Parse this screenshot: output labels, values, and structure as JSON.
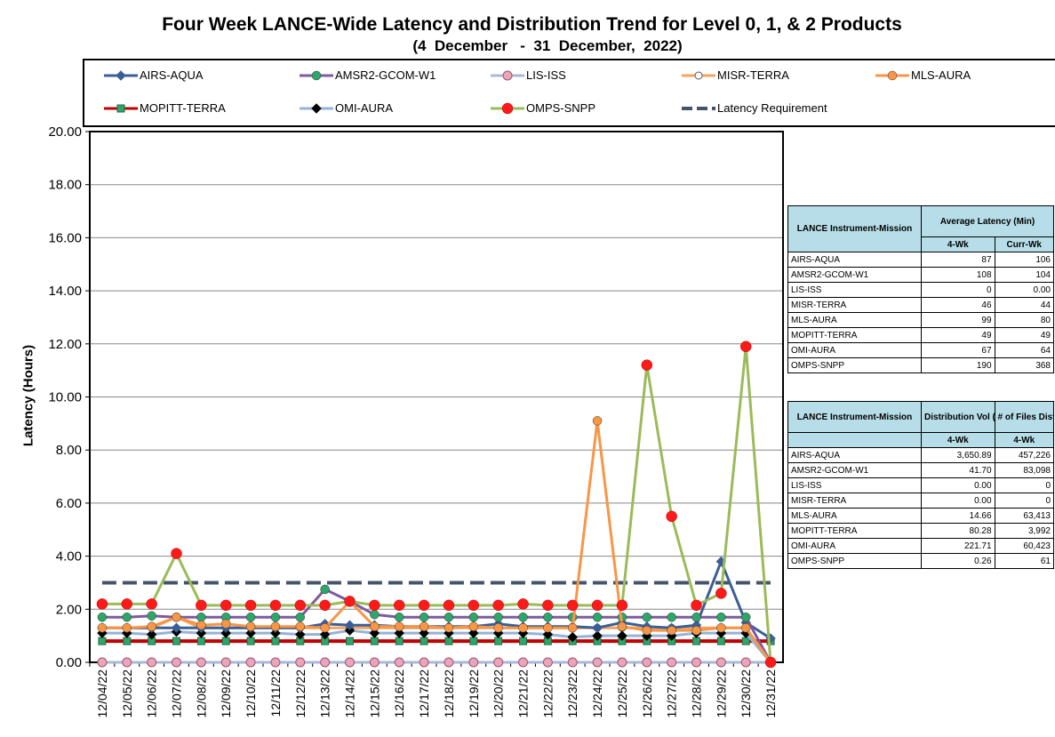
{
  "chart_data": {
    "type": "line",
    "title": "Four Week LANCE-Wide Latency and Distribution Trend for Level 0, 1, & 2 Products",
    "subtitle": "(4  December   -  31  December,  2022)",
    "xlabel": "",
    "ylabel": "Latency (Hours)",
    "ylim": [
      0,
      20
    ],
    "yticks": [
      "0.00",
      "2.00",
      "4.00",
      "6.00",
      "8.00",
      "10.00",
      "12.00",
      "14.00",
      "16.00",
      "18.00",
      "20.00"
    ],
    "grid": true,
    "legend_position": "top",
    "categories": [
      "12/04/22",
      "12/05/22",
      "12/06/22",
      "12/07/22",
      "12/08/22",
      "12/09/22",
      "12/10/22",
      "12/11/22",
      "12/12/22",
      "12/13/22",
      "12/14/22",
      "12/15/22",
      "12/16/22",
      "12/17/22",
      "12/18/22",
      "12/19/22",
      "12/20/22",
      "12/21/22",
      "12/22/22",
      "12/23/22",
      "12/24/22",
      "12/25/22",
      "12/26/22",
      "12/27/22",
      "12/28/22",
      "12/29/22",
      "12/30/22",
      "12/31/22"
    ],
    "series": [
      {
        "name": "AIRS-AQUA",
        "color": "#3a5f96",
        "marker": "diamond",
        "values": [
          1.3,
          1.3,
          1.3,
          1.3,
          1.3,
          1.3,
          1.3,
          1.3,
          1.3,
          1.45,
          1.4,
          1.4,
          1.35,
          1.35,
          1.35,
          1.35,
          1.45,
          1.35,
          1.35,
          1.35,
          1.3,
          1.5,
          1.35,
          1.3,
          1.4,
          3.8,
          1.5,
          0.9
        ]
      },
      {
        "name": "AMSR2-GCOM-W1",
        "color": "#7f5a9e",
        "marker": "circle",
        "values": [
          1.7,
          1.7,
          1.75,
          1.7,
          1.7,
          1.7,
          1.7,
          1.7,
          1.7,
          2.75,
          2.3,
          1.8,
          1.7,
          1.7,
          1.7,
          1.7,
          1.7,
          1.7,
          1.7,
          1.7,
          1.7,
          1.7,
          1.7,
          1.7,
          1.7,
          1.7,
          1.7,
          0.0
        ]
      },
      {
        "name": "LIS-ISS",
        "color": "#aab8d8",
        "marker": "circle-pink",
        "values": [
          0,
          0,
          0,
          0,
          0,
          0,
          0,
          0,
          0,
          0,
          0,
          0,
          0,
          0,
          0,
          0,
          0,
          0,
          0,
          0,
          0,
          0,
          0,
          0,
          0,
          0,
          0,
          0
        ]
      },
      {
        "name": "MISR-TERRA",
        "color": "#f4a460",
        "marker": "circle-open",
        "values": [
          1.3,
          1.3,
          1.3,
          1.7,
          1.3,
          1.3,
          1.3,
          1.3,
          1.3,
          1.3,
          1.3,
          1.3,
          1.3,
          1.3,
          1.3,
          1.3,
          1.3,
          1.3,
          1.3,
          1.3,
          1.3,
          1.3,
          1.3,
          1.3,
          1.3,
          1.3,
          1.3,
          0.0
        ]
      },
      {
        "name": "MLS-AURA",
        "color": "#f79646",
        "marker": "circle",
        "values": [
          1.3,
          1.3,
          1.35,
          1.7,
          1.4,
          1.45,
          1.35,
          1.35,
          1.35,
          1.3,
          2.3,
          1.35,
          1.35,
          1.35,
          1.3,
          1.35,
          1.3,
          1.3,
          1.3,
          1.3,
          9.1,
          1.35,
          1.2,
          1.2,
          1.2,
          1.3,
          1.3,
          0.0
        ]
      },
      {
        "name": "MOPITT-TERRA",
        "color": "#c00000",
        "marker": "square",
        "values": [
          0.8,
          0.8,
          0.8,
          0.8,
          0.8,
          0.8,
          0.8,
          0.8,
          0.8,
          0.8,
          0.8,
          0.8,
          0.8,
          0.8,
          0.8,
          0.8,
          0.8,
          0.8,
          0.8,
          0.8,
          0.8,
          0.8,
          0.8,
          0.8,
          0.8,
          0.8,
          0.8,
          0.8
        ]
      },
      {
        "name": "OMI-AURA",
        "color": "#95b3d7",
        "marker": "diamond-black",
        "values": [
          1.1,
          1.1,
          1.05,
          1.15,
          1.1,
          1.1,
          1.1,
          1.1,
          1.05,
          1.05,
          1.2,
          1.1,
          1.1,
          1.1,
          1.1,
          1.1,
          1.1,
          1.1,
          1.05,
          0.95,
          1.0,
          1.0,
          1.0,
          1.0,
          1.1,
          1.1,
          1.1,
          0.0
        ]
      },
      {
        "name": "OMPS-SNPP",
        "color": "#9bbb59",
        "marker": "circle-red",
        "values": [
          2.2,
          2.2,
          2.2,
          4.1,
          2.15,
          2.15,
          2.15,
          2.15,
          2.15,
          2.15,
          2.3,
          2.15,
          2.15,
          2.15,
          2.15,
          2.15,
          2.15,
          2.2,
          2.15,
          2.15,
          2.15,
          2.15,
          11.2,
          5.5,
          2.15,
          2.6,
          11.9,
          0.0
        ]
      },
      {
        "name": "Latency Requirement",
        "color": "#44546a",
        "marker": "dash",
        "values": [
          3,
          3,
          3,
          3,
          3,
          3,
          3,
          3,
          3,
          3,
          3,
          3,
          3,
          3,
          3,
          3,
          3,
          3,
          3,
          3,
          3,
          3,
          3,
          3,
          3,
          3,
          3,
          3
        ]
      }
    ]
  },
  "table1": {
    "head_col1": "LANCE Instrument-Mission",
    "head_col2": "Average Latency (Min)",
    "sub_col2": "4-Wk",
    "sub_col3": "Curr-Wk",
    "rows": [
      {
        "name": "AIRS-AQUA",
        "wk4": "87",
        "curr": "106"
      },
      {
        "name": "AMSR2-GCOM-W1",
        "wk4": "108",
        "curr": "104"
      },
      {
        "name": "LIS-ISS",
        "wk4": "0",
        "curr": "0.00"
      },
      {
        "name": "MISR-TERRA",
        "wk4": "46",
        "curr": "44"
      },
      {
        "name": "MLS-AURA",
        "wk4": "99",
        "curr": "80"
      },
      {
        "name": "MOPITT-TERRA",
        "wk4": "49",
        "curr": "49"
      },
      {
        "name": "OMI-AURA",
        "wk4": "67",
        "curr": "64"
      },
      {
        "name": "OMPS-SNPP",
        "wk4": "190",
        "curr": "368"
      }
    ]
  },
  "table2": {
    "head_col1": "LANCE Instrument-Mission",
    "head_col2": "Distribution Vol (GB)",
    "head_col3": "# of Files Distributed",
    "sub_col2": "4-Wk",
    "sub_col3": "4-Wk",
    "rows": [
      {
        "name": "AIRS-AQUA",
        "vol": "3,650.89",
        "files": "457,226"
      },
      {
        "name": "AMSR2-GCOM-W1",
        "vol": "41.70",
        "files": "83,098"
      },
      {
        "name": "LIS-ISS",
        "vol": "0.00",
        "files": "0"
      },
      {
        "name": "MISR-TERRA",
        "vol": "0.00",
        "files": "0"
      },
      {
        "name": "MLS-AURA",
        "vol": "14.66",
        "files": "63,413"
      },
      {
        "name": "MOPITT-TERRA",
        "vol": "80.28",
        "files": "3,992"
      },
      {
        "name": "OMI-AURA",
        "vol": "221.71",
        "files": "60,423"
      },
      {
        "name": "OMPS-SNPP",
        "vol": "0.26",
        "files": "61"
      }
    ]
  }
}
